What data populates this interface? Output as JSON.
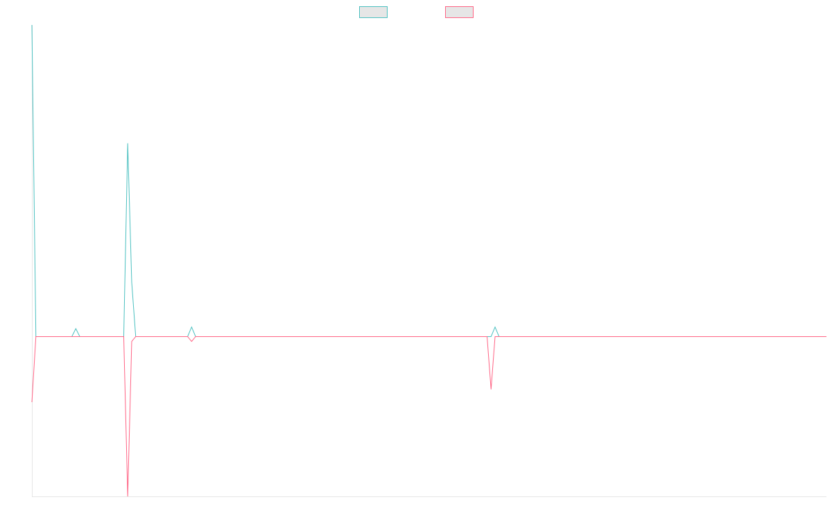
{
  "chart_data": {
    "type": "line",
    "title": "",
    "xlabel": "",
    "ylabel": "",
    "x": [
      0,
      1,
      2,
      3,
      4,
      5,
      6,
      7,
      8,
      9,
      10,
      11,
      12,
      13,
      14,
      15,
      16,
      17,
      18,
      19,
      20,
      21,
      22,
      23,
      24,
      25,
      26,
      27,
      28,
      29,
      30,
      31,
      32,
      33,
      34,
      35,
      36,
      37,
      38,
      39,
      40,
      41,
      42,
      43,
      44,
      45,
      46,
      47,
      48,
      49,
      50,
      51,
      52,
      53,
      54,
      55,
      56,
      57,
      58,
      59,
      60,
      61,
      62,
      63,
      64,
      65,
      66,
      67,
      68,
      69,
      70,
      71,
      72,
      73,
      74,
      75,
      76,
      77,
      78,
      79,
      80,
      81,
      82,
      83,
      84,
      85,
      86,
      87,
      88,
      89,
      90,
      91,
      92,
      93,
      94,
      95,
      96,
      97,
      98,
      99,
      100,
      101,
      102,
      103,
      104,
      105,
      106,
      107,
      108,
      109,
      110,
      111,
      112,
      113,
      114,
      115,
      116,
      117,
      118,
      119,
      120,
      121,
      122,
      123,
      124,
      125,
      126,
      127,
      128,
      129,
      130,
      131,
      132,
      133,
      134,
      135,
      136,
      137,
      138,
      139,
      140,
      141,
      142,
      143,
      144,
      145,
      146,
      147,
      148,
      149,
      150,
      151,
      152,
      153,
      154,
      155,
      156,
      157,
      158,
      159,
      160,
      161,
      162,
      163,
      164,
      165,
      166,
      167,
      168,
      169,
      170,
      171,
      172,
      173,
      174,
      175,
      176,
      177,
      178,
      179,
      180,
      181,
      182,
      183,
      184,
      185,
      186,
      187,
      188,
      189,
      190,
      191,
      192,
      193,
      194,
      195,
      196,
      197,
      198,
      199
    ],
    "xlim": [
      0,
      199
    ],
    "ylim": [
      -100,
      195
    ],
    "grid": false,
    "legend_position": "top-center",
    "series": [
      {
        "color": "#4bc0c0",
        "values": [
          195,
          0,
          0,
          0,
          0,
          0,
          0,
          0,
          0,
          0,
          0,
          5,
          0,
          0,
          0,
          0,
          0,
          0,
          0,
          0,
          0,
          0,
          0,
          0,
          121,
          34,
          0,
          0,
          0,
          0,
          0,
          0,
          0,
          0,
          0,
          0,
          0,
          0,
          0,
          0,
          6,
          0,
          0,
          0,
          0,
          0,
          0,
          0,
          0,
          0,
          0,
          0,
          0,
          0,
          0,
          0,
          0,
          0,
          0,
          0,
          0,
          0,
          0,
          0,
          0,
          0,
          0,
          0,
          0,
          0,
          0,
          0,
          0,
          0,
          0,
          0,
          0,
          0,
          0,
          0,
          0,
          0,
          0,
          0,
          0,
          0,
          0,
          0,
          0,
          0,
          0,
          0,
          0,
          0,
          0,
          0,
          0,
          0,
          0,
          0,
          0,
          0,
          0,
          0,
          0,
          0,
          0,
          0,
          0,
          0,
          0,
          0,
          0,
          0,
          0,
          0,
          6,
          0,
          0,
          0,
          0,
          0,
          0,
          0,
          0,
          0,
          0,
          0,
          0,
          0,
          0,
          0,
          0,
          0,
          0,
          0,
          0,
          0,
          0,
          0,
          0,
          0,
          0,
          0,
          0,
          0,
          0,
          0,
          0,
          0,
          0,
          0,
          0,
          0,
          0,
          0,
          0,
          0,
          0,
          0,
          0,
          0,
          0,
          0,
          0,
          0,
          0,
          0,
          0,
          0,
          0,
          0,
          0,
          0,
          0,
          0,
          0,
          0,
          0,
          0,
          0,
          0,
          0,
          0,
          0,
          0,
          0,
          0,
          0,
          0,
          0,
          0,
          0,
          0,
          0,
          0,
          0,
          0,
          0,
          0
        ]
      },
      {
        "color": "#ff6384",
        "values": [
          -41,
          0,
          0,
          0,
          0,
          0,
          0,
          0,
          0,
          0,
          0,
          0,
          0,
          0,
          0,
          0,
          0,
          0,
          0,
          0,
          0,
          0,
          0,
          0,
          -100,
          -3,
          0,
          0,
          0,
          0,
          0,
          0,
          0,
          0,
          0,
          0,
          0,
          0,
          0,
          0,
          -3,
          0,
          0,
          0,
          0,
          0,
          0,
          0,
          0,
          0,
          0,
          0,
          0,
          0,
          0,
          0,
          0,
          0,
          0,
          0,
          0,
          0,
          0,
          0,
          0,
          0,
          0,
          0,
          0,
          0,
          0,
          0,
          0,
          0,
          0,
          0,
          0,
          0,
          0,
          0,
          0,
          0,
          0,
          0,
          0,
          0,
          0,
          0,
          0,
          0,
          0,
          0,
          0,
          0,
          0,
          0,
          0,
          0,
          0,
          0,
          0,
          0,
          0,
          0,
          0,
          0,
          0,
          0,
          0,
          0,
          0,
          0,
          0,
          0,
          0,
          -33,
          0,
          0,
          0,
          0,
          0,
          0,
          0,
          0,
          0,
          0,
          0,
          0,
          0,
          0,
          0,
          0,
          0,
          0,
          0,
          0,
          0,
          0,
          0,
          0,
          0,
          0,
          0,
          0,
          0,
          0,
          0,
          0,
          0,
          0,
          0,
          0,
          0,
          0,
          0,
          0,
          0,
          0,
          0,
          0,
          0,
          0,
          0,
          0,
          0,
          0,
          0,
          0,
          0,
          0,
          0,
          0,
          0,
          0,
          0,
          0,
          0,
          0,
          0,
          0,
          0,
          0,
          0,
          0,
          0,
          0,
          0,
          0,
          0,
          0,
          0,
          0,
          0,
          0,
          0,
          0,
          0,
          0,
          0,
          0
        ]
      }
    ]
  }
}
